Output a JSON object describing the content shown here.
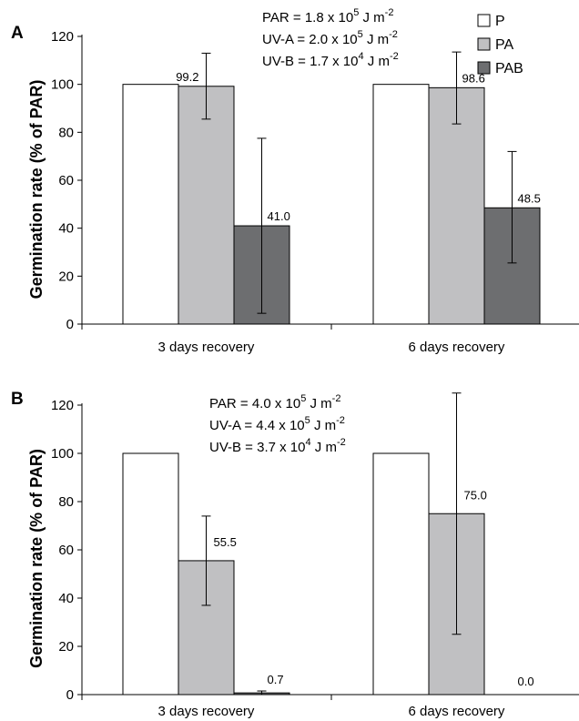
{
  "colors": {
    "P": "#ffffff",
    "PA": "#c0c0c2",
    "PAB": "#6d6e70"
  },
  "legend": [
    {
      "key": "P",
      "label": "P"
    },
    {
      "key": "PA",
      "label": "PA"
    },
    {
      "key": "PAB",
      "label": "PAB"
    }
  ],
  "chart_data": [
    {
      "type": "bar",
      "panel": "A",
      "ylabel": "Germination rate (% of PAR)",
      "ylim": [
        0,
        120
      ],
      "yticks": [
        "0",
        "20",
        "40",
        "60",
        "80",
        "100",
        "120"
      ],
      "categories": [
        "3 days recovery",
        "6 days recovery"
      ],
      "annotation": [
        {
          "text": "PAR  = 1.8 x 10",
          "sup": "5",
          "unit": " J m",
          "unitsup": "-2"
        },
        {
          "text": "UV-A = 2.0 x 10",
          "sup": "5",
          "unit": " J m",
          "unitsup": "-2"
        },
        {
          "text": "UV-B = 1.7 x 10",
          "sup": "4",
          "unit": " J m",
          "unitsup": "-2"
        }
      ],
      "series": [
        {
          "name": "P",
          "values": [
            100,
            100
          ],
          "err_low": [
            null,
            null
          ],
          "err_high": [
            null,
            null
          ],
          "labels": [
            null,
            null
          ]
        },
        {
          "name": "PA",
          "values": [
            99.2,
            98.6
          ],
          "err_low": [
            85.5,
            83.5
          ],
          "err_high": [
            113,
            113.5
          ],
          "labels": [
            "99.2",
            "98.6"
          ]
        },
        {
          "name": "PAB",
          "values": [
            41.0,
            48.5
          ],
          "err_low": [
            4.5,
            25.5
          ],
          "err_high": [
            77.5,
            72
          ],
          "labels": [
            "41.0",
            "48.5"
          ]
        }
      ]
    },
    {
      "type": "bar",
      "panel": "B",
      "ylabel": "Germination rate (% of PAR)",
      "ylim": [
        0,
        120
      ],
      "yticks": [
        "0",
        "20",
        "40",
        "60",
        "80",
        "100",
        "120"
      ],
      "categories": [
        "3 days recovery",
        "6 days recovery"
      ],
      "annotation": [
        {
          "text": "PAR  = 4.0 x 10",
          "sup": "5",
          "unit": " J m",
          "unitsup": "-2"
        },
        {
          "text": "UV-A = 4.4 x 10",
          "sup": "5",
          "unit": " J m",
          "unitsup": "-2"
        },
        {
          "text": "UV-B = 3.7 x 10",
          "sup": "4",
          "unit": " J m",
          "unitsup": "-2"
        }
      ],
      "series": [
        {
          "name": "P",
          "values": [
            100,
            100
          ],
          "err_low": [
            null,
            null
          ],
          "err_high": [
            null,
            null
          ],
          "labels": [
            null,
            null
          ]
        },
        {
          "name": "PA",
          "values": [
            55.5,
            75.0
          ],
          "err_low": [
            37,
            25
          ],
          "err_high": [
            74,
            125
          ],
          "labels": [
            "55.5",
            "75.0"
          ]
        },
        {
          "name": "PAB",
          "values": [
            0.7,
            0.0
          ],
          "err_low": [
            0,
            null
          ],
          "err_high": [
            1.5,
            null
          ],
          "labels": [
            "0.7",
            "0.0"
          ]
        }
      ]
    }
  ]
}
